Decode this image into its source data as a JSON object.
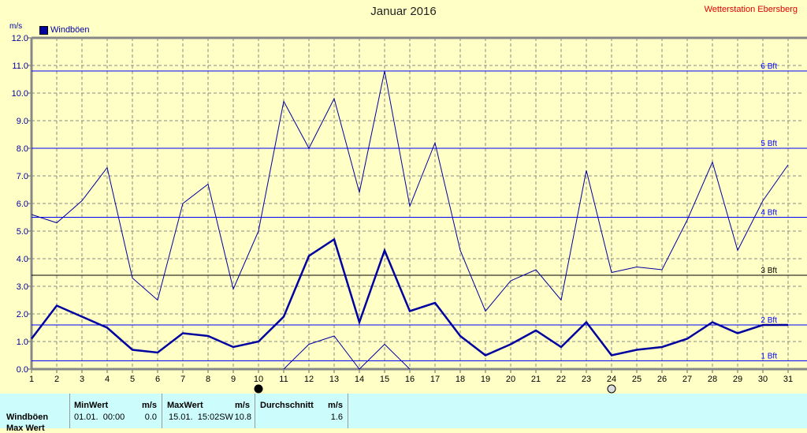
{
  "chart_data": {
    "type": "line",
    "title": "Januar 2016",
    "station": "Wetterstation Ebersberg",
    "ylabel": "m/s",
    "ylim": [
      0,
      12
    ],
    "xlim": [
      1,
      31
    ],
    "yticks": [
      "0.0",
      "1.0",
      "2.0",
      "3.0",
      "4.0",
      "5.0",
      "6.0",
      "7.0",
      "8.0",
      "9.0",
      "10.0",
      "11.0",
      "12.0"
    ],
    "legend": "Windböen",
    "grid": true,
    "x": [
      1,
      2,
      3,
      4,
      5,
      6,
      7,
      8,
      9,
      10,
      11,
      12,
      13,
      14,
      15,
      16,
      17,
      18,
      19,
      20,
      21,
      22,
      23,
      24,
      25,
      26,
      27,
      28,
      29,
      30,
      31
    ],
    "series": [
      {
        "name": "Max",
        "values": [
          5.6,
          5.3,
          6.1,
          7.3,
          3.3,
          2.5,
          6.0,
          6.7,
          2.9,
          5.0,
          9.7,
          8.0,
          9.8,
          6.4,
          10.8,
          5.9,
          8.2,
          4.3,
          2.1,
          3.2,
          3.6,
          2.5,
          7.2,
          3.5,
          3.7,
          3.6,
          5.4,
          7.5,
          4.3,
          6.1,
          7.4
        ]
      },
      {
        "name": "Durchschnitt",
        "values": [
          1.1,
          2.3,
          1.9,
          1.5,
          0.7,
          0.6,
          1.3,
          1.2,
          0.8,
          1.0,
          1.9,
          4.1,
          4.7,
          1.7,
          4.3,
          2.1,
          2.4,
          1.2,
          0.5,
          0.9,
          1.4,
          0.8,
          1.7,
          0.5,
          0.7,
          0.8,
          1.1,
          1.7,
          1.3,
          1.6,
          1.6
        ]
      },
      {
        "name": "Min",
        "values": [
          null,
          null,
          null,
          null,
          null,
          null,
          null,
          null,
          null,
          null,
          0.0,
          0.9,
          1.2,
          0.0,
          0.9,
          0.0,
          null,
          null,
          null,
          null,
          null,
          null,
          null,
          null,
          null,
          null,
          null,
          null,
          null,
          null,
          null
        ]
      }
    ],
    "beaufort": [
      {
        "label": "1 Bft",
        "value": 0.3
      },
      {
        "label": "2 Bft",
        "value": 1.6
      },
      {
        "label": "3 Bft",
        "value": 3.4
      },
      {
        "label": "4 Bft",
        "value": 5.5
      },
      {
        "label": "5 Bft",
        "value": 8.0
      },
      {
        "label": "6 Bft",
        "value": 10.8
      }
    ],
    "markers": [
      {
        "day": 10,
        "type": "new-moon"
      },
      {
        "day": 24,
        "type": "full-moon"
      }
    ]
  },
  "table": {
    "row_label": "Windböen",
    "row_label2": "Max Wert",
    "min_header": "MinWert",
    "min_unit": "m/s",
    "min_time": "01.01.  00:00",
    "min_value": "0.0",
    "max_header": "MaxWert",
    "max_unit": "m/s",
    "max_time": "15.01.  15:02SW",
    "max_value": "10.8",
    "avg_header": "Durchschnitt",
    "avg_unit": "m/s",
    "avg_value": "1.6"
  }
}
